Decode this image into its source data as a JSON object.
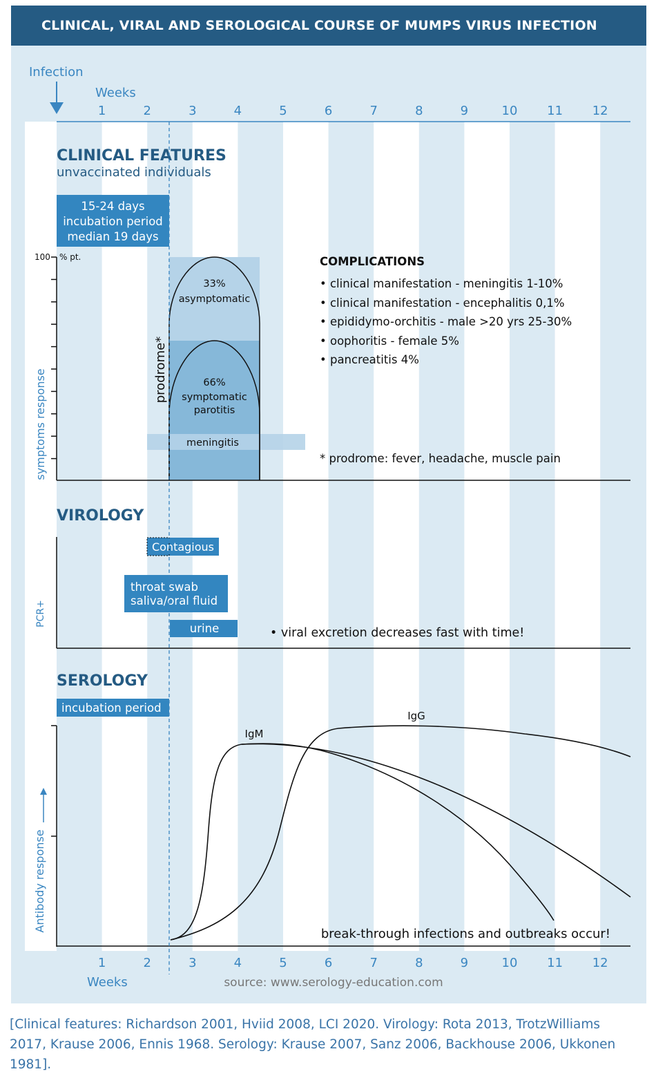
{
  "header": {
    "title": "CLINICAL, VIRAL AND SEROLOGICAL COURSE OF MUMPS VIRUS INFECTION"
  },
  "axis": {
    "infection_label": "Infection",
    "weeks_label": "Weeks",
    "week_numbers": [
      "1",
      "2",
      "3",
      "4",
      "5",
      "6",
      "7",
      "8",
      "9",
      "10",
      "11",
      "12"
    ]
  },
  "clinical": {
    "title": "CLINICAL FEATURES",
    "subtitle": "unvaccinated individuals",
    "incubation_lines": [
      "15-24 days",
      "incubation period",
      "median 19 days"
    ],
    "y_top_label": "100",
    "y_unit_label": "% pt.",
    "y_axis_label": "symptoms response",
    "prodrome_label": "prodrome*",
    "asymptomatic_pct": "33%",
    "asymptomatic_label": "asymptomatic",
    "symptomatic_pct": "66%",
    "symptomatic_label": "symptomatic",
    "parotitis_label": "parotitis",
    "meningitis_label": "meningitis",
    "complications_title": "COMPLICATIONS",
    "complications": [
      "• clinical manifestation - meningitis 1-10%",
      "• clinical manifestation - encephalitis 0,1%",
      "• epididymo-orchitis - male >20 yrs  25-30%",
      "• oophoritis - female 5%",
      "• pancreatitis 4%"
    ],
    "prodrome_note": "* prodrome: fever, headache, muscle pain"
  },
  "virology": {
    "title": "VIROLOGY",
    "y_axis_label": "PCR+",
    "contagious_label": "Contagious",
    "throat_lines": [
      "throat swab",
      "saliva/oral fluid"
    ],
    "urine_label": "urine",
    "note": "• viral excretion decreases fast with time!"
  },
  "serology": {
    "title": "SEROLOGY",
    "incubation_label": "incubation period",
    "y_axis_label": "Antibody response",
    "igm_label": "IgM",
    "igg_label": "IgG",
    "note": "break-through infections and outbreaks occur!",
    "source": "source: www.serology-education.com"
  },
  "colors": {
    "header_bg": "#255b83",
    "stripe_light": "#dbeaf3",
    "box_dark": "#3386c0",
    "box_mid": "#86b8d9",
    "box_light": "#b5d3e8",
    "text_blue": "#3a86c1"
  },
  "footer": {
    "lines": [
      "[Clinical features: Richardson 2001, Hviid 2008, LCI 2020. Virology: Rota 2013, TrotzWilliams",
      "2017, Krause 2006, Ennis 1968. Serology: Krause 2007, Sanz 2006, Backhouse 2006, Ukkonen",
      "1981]."
    ]
  }
}
